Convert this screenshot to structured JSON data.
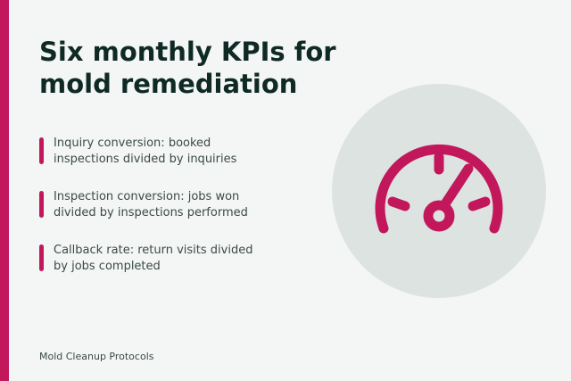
{
  "title": "Six monthly KPIs for mold remediation",
  "items": [
    "Inquiry conversion: booked inspections divided by inquiries",
    "Inspection conversion: jobs won divided by inspections performed",
    "Callback rate: return visits divided by jobs completed"
  ],
  "footer": "Mold Cleanup Protocols"
}
